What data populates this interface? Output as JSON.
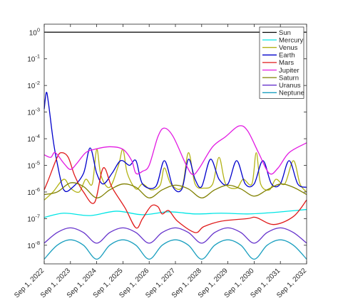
{
  "chart_data": {
    "type": "line",
    "title": "",
    "xlabel": "",
    "ylabel": "",
    "x_axis": {
      "type": "date",
      "range": [
        "2022-09-01",
        "2032-09-01"
      ],
      "tick_labels": [
        "Sep 1, 2022",
        "Sep 1, 2023",
        "Sep 1, 2024",
        "Sep 1, 2025",
        "Sep 1, 2026",
        "Sep 1, 2027",
        "Sep 1, 2028",
        "Sep 1, 2029",
        "Sep 1, 2030",
        "Sep 1, 2031",
        "Sep 1, 2032"
      ]
    },
    "y_axis": {
      "scale": "log",
      "range": [
        2e-09,
        2
      ],
      "ticks": [
        {
          "value": 1e-08,
          "base": "10",
          "exp": "-8"
        },
        {
          "value": 1e-07,
          "base": "10",
          "exp": "-7"
        },
        {
          "value": 1e-06,
          "base": "10",
          "exp": "-6"
        },
        {
          "value": 1e-05,
          "base": "10",
          "exp": "-5"
        },
        {
          "value": 0.0001,
          "base": "10",
          "exp": "-4"
        },
        {
          "value": 0.001,
          "base": "10",
          "exp": "-3"
        },
        {
          "value": 0.01,
          "base": "10",
          "exp": "-2"
        },
        {
          "value": 0.1,
          "base": "10",
          "exp": "-1"
        },
        {
          "value": 1,
          "base": "10",
          "exp": "0"
        }
      ]
    },
    "grid": false,
    "legend": {
      "position": "top-right"
    },
    "series": [
      {
        "name": "Sun",
        "color": "#000000",
        "points": [
          [
            "2022-09-01",
            1.0
          ],
          [
            "2032-09-01",
            1.0
          ]
        ]
      },
      {
        "name": "Mercury",
        "color": "#00e5e5",
        "points": [
          [
            "2022-09-01",
            1.1e-07
          ],
          [
            "2023-06-01",
            1.6e-07
          ],
          [
            "2024-06-01",
            1.3e-07
          ],
          [
            "2025-06-01",
            1.9e-07
          ],
          [
            "2026-06-01",
            1.4e-07
          ],
          [
            "2027-06-01",
            1.8e-07
          ],
          [
            "2028-06-01",
            1.5e-07
          ],
          [
            "2029-06-01",
            1.6e-07
          ],
          [
            "2030-06-01",
            1.5e-07
          ],
          [
            "2031-06-01",
            1.7e-07
          ],
          [
            "2032-09-01",
            2.2e-07
          ]
        ]
      },
      {
        "name": "Venus",
        "color": "#b3b317",
        "points": [
          [
            "2022-09-01",
            5e-07
          ],
          [
            "2023-01-01",
            1e-06
          ],
          [
            "2023-06-01",
            3e-06
          ],
          [
            "2023-09-01",
            1.4e-06
          ],
          [
            "2024-01-01",
            1e-06
          ],
          [
            "2024-04-01",
            3e-06
          ],
          [
            "2024-07-01",
            2e-06
          ],
          [
            "2024-09-01",
            4e-05
          ],
          [
            "2024-11-01",
            4e-06
          ],
          [
            "2025-03-01",
            1.5e-06
          ],
          [
            "2025-07-01",
            1e-05
          ],
          [
            "2025-09-01",
            4e-05
          ],
          [
            "2025-11-01",
            5e-06
          ],
          [
            "2026-03-01",
            1.3e-06
          ],
          [
            "2026-06-01",
            2e-06
          ],
          [
            "2026-10-01",
            1.2e-06
          ],
          [
            "2027-02-01",
            1.8e-06
          ],
          [
            "2027-04-01",
            8e-06
          ],
          [
            "2027-07-01",
            2e-06
          ],
          [
            "2027-12-01",
            1.5e-06
          ],
          [
            "2028-03-01",
            3e-05
          ],
          [
            "2028-06-01",
            2e-06
          ],
          [
            "2028-10-01",
            1.4e-06
          ],
          [
            "2029-02-01",
            2e-06
          ],
          [
            "2029-05-01",
            2e-05
          ],
          [
            "2029-08-01",
            2e-06
          ],
          [
            "2030-01-01",
            1.4e-06
          ],
          [
            "2030-04-01",
            3e-06
          ],
          [
            "2030-08-01",
            2e-06
          ],
          [
            "2030-10-01",
            3e-05
          ],
          [
            "2030-12-01",
            2e-06
          ],
          [
            "2031-04-01",
            1.2e-06
          ],
          [
            "2031-07-01",
            3e-06
          ],
          [
            "2031-11-01",
            2e-06
          ],
          [
            "2032-03-01",
            1.5e-05
          ],
          [
            "2032-06-01",
            2e-06
          ],
          [
            "2032-09-01",
            1e-06
          ]
        ]
      },
      {
        "name": "Earth",
        "color": "#0000cc",
        "points": [
          [
            "2022-09-01",
            0.0013
          ],
          [
            "2022-10-01",
            0.0055
          ],
          [
            "2022-11-01",
            0.002
          ],
          [
            "2023-01-01",
            0.0001
          ],
          [
            "2023-03-01",
            1.2e-05
          ],
          [
            "2023-06-01",
            1.2e-06
          ],
          [
            "2023-10-01",
            1.5e-06
          ],
          [
            "2024-03-01",
            5e-06
          ],
          [
            "2024-06-01",
            4.5e-05
          ],
          [
            "2024-09-01",
            5e-06
          ],
          [
            "2024-12-01",
            2e-06
          ],
          [
            "2025-04-01",
            5e-06
          ],
          [
            "2025-08-01",
            1.5e-05
          ],
          [
            "2025-12-01",
            1e-05
          ],
          [
            "2026-03-01",
            1.5e-05
          ],
          [
            "2026-06-01",
            2e-06
          ],
          [
            "2026-12-01",
            1.6e-06
          ],
          [
            "2027-04-01",
            1.5e-05
          ],
          [
            "2027-08-01",
            1.5e-06
          ],
          [
            "2027-12-01",
            1.3e-06
          ],
          [
            "2028-03-01",
            1.7e-05
          ],
          [
            "2028-06-01",
            3e-06
          ],
          [
            "2028-09-01",
            1.6e-06
          ],
          [
            "2029-01-01",
            1.7e-05
          ],
          [
            "2029-05-01",
            3e-06
          ],
          [
            "2029-09-01",
            2e-06
          ],
          [
            "2030-01-01",
            1.5e-05
          ],
          [
            "2030-05-01",
            2e-06
          ],
          [
            "2030-09-01",
            2e-06
          ],
          [
            "2031-01-01",
            1.5e-05
          ],
          [
            "2031-05-01",
            2e-06
          ],
          [
            "2031-09-01",
            2e-06
          ],
          [
            "2032-01-01",
            1.5e-05
          ],
          [
            "2032-05-01",
            2e-06
          ],
          [
            "2032-09-01",
            1.5e-06
          ]
        ]
      },
      {
        "name": "Mars",
        "color": "#e01a1a",
        "points": [
          [
            "2022-09-01",
            1.2e-06
          ],
          [
            "2022-11-01",
            3e-06
          ],
          [
            "2023-03-01",
            2e-05
          ],
          [
            "2023-05-01",
            3e-05
          ],
          [
            "2023-08-01",
            2e-05
          ],
          [
            "2023-11-01",
            4e-06
          ],
          [
            "2024-03-01",
            1e-06
          ],
          [
            "2024-08-01",
            4e-07
          ],
          [
            "2024-12-01",
            8e-06
          ],
          [
            "2025-04-01",
            1.5e-06
          ],
          [
            "2025-10-01",
            2.5e-07
          ],
          [
            "2026-03-01",
            4.5e-08
          ],
          [
            "2026-06-01",
            1e-07
          ],
          [
            "2026-10-01",
            3e-07
          ],
          [
            "2027-01-01",
            2.8e-07
          ],
          [
            "2027-03-01",
            1.5e-07
          ],
          [
            "2027-06-01",
            2e-07
          ],
          [
            "2027-10-01",
            8e-08
          ],
          [
            "2028-06-01",
            3e-08
          ],
          [
            "2028-10-01",
            5e-08
          ],
          [
            "2029-06-01",
            8e-08
          ],
          [
            "2030-06-01",
            1e-07
          ],
          [
            "2030-10-01",
            1.1e-07
          ],
          [
            "2031-06-01",
            6e-08
          ],
          [
            "2032-03-01",
            1.2e-07
          ],
          [
            "2032-09-01",
            5e-07
          ]
        ]
      },
      {
        "name": "Jupiter",
        "color": "#e21ae2",
        "points": [
          [
            "2022-09-01",
            2.5e-05
          ],
          [
            "2022-12-01",
            2e-05
          ],
          [
            "2023-02-01",
            3e-05
          ],
          [
            "2023-06-01",
            1.2e-05
          ],
          [
            "2023-09-01",
            7e-06
          ],
          [
            "2023-12-01",
            1.2e-05
          ],
          [
            "2024-04-01",
            3e-05
          ],
          [
            "2024-08-01",
            4e-05
          ],
          [
            "2025-03-01",
            5e-05
          ],
          [
            "2025-09-01",
            4e-05
          ],
          [
            "2026-01-01",
            1.5e-05
          ],
          [
            "2026-03-01",
            5e-06
          ],
          [
            "2026-06-01",
            6e-06
          ],
          [
            "2026-09-01",
            1e-05
          ],
          [
            "2027-01-01",
            0.00012
          ],
          [
            "2027-04-01",
            0.00025
          ],
          [
            "2027-08-01",
            0.00012
          ],
          [
            "2028-02-01",
            1e-05
          ],
          [
            "2028-05-01",
            4.5e-06
          ],
          [
            "2028-08-01",
            8e-06
          ],
          [
            "2029-02-01",
            5e-05
          ],
          [
            "2029-08-01",
            0.00012
          ],
          [
            "2030-02-01",
            0.0003
          ],
          [
            "2030-06-01",
            0.0002
          ],
          [
            "2030-11-01",
            3e-05
          ],
          [
            "2031-04-01",
            5e-06
          ],
          [
            "2031-08-01",
            8e-06
          ],
          [
            "2032-01-01",
            3e-05
          ],
          [
            "2032-09-01",
            7e-05
          ]
        ]
      },
      {
        "name": "Saturn",
        "color": "#808000",
        "points": [
          [
            "2022-09-01",
            8e-07
          ],
          [
            "2023-03-01",
            1e-06
          ],
          [
            "2023-09-01",
            2.2e-06
          ],
          [
            "2024-03-01",
            1.6e-06
          ],
          [
            "2024-09-01",
            6e-07
          ],
          [
            "2025-03-01",
            1.2e-06
          ],
          [
            "2025-09-01",
            2e-06
          ],
          [
            "2026-03-01",
            1.5e-06
          ],
          [
            "2026-09-01",
            6e-07
          ],
          [
            "2027-03-01",
            1.2e-06
          ],
          [
            "2027-09-01",
            1.8e-06
          ],
          [
            "2028-03-01",
            1.3e-06
          ],
          [
            "2028-09-01",
            6e-07
          ],
          [
            "2029-03-01",
            1.2e-06
          ],
          [
            "2029-09-01",
            1.8e-06
          ],
          [
            "2030-03-01",
            1.3e-06
          ],
          [
            "2030-09-01",
            7e-07
          ],
          [
            "2031-03-01",
            1.2e-06
          ],
          [
            "2031-09-01",
            2e-06
          ],
          [
            "2032-03-01",
            1.5e-06
          ],
          [
            "2032-09-01",
            8e-07
          ]
        ]
      },
      {
        "name": "Uranus",
        "color": "#6633cc",
        "points": [
          [
            "2022-09-01",
            1.2e-08
          ],
          [
            "2023-03-01",
            3e-08
          ],
          [
            "2023-09-01",
            4.5e-08
          ],
          [
            "2024-03-01",
            3e-08
          ],
          [
            "2024-09-01",
            1.2e-08
          ],
          [
            "2025-03-01",
            3e-08
          ],
          [
            "2025-09-01",
            4.5e-08
          ],
          [
            "2026-03-01",
            3e-08
          ],
          [
            "2026-09-01",
            1.2e-08
          ],
          [
            "2027-03-01",
            3e-08
          ],
          [
            "2027-09-01",
            4.5e-08
          ],
          [
            "2028-03-01",
            3e-08
          ],
          [
            "2028-09-01",
            1.2e-08
          ],
          [
            "2029-03-01",
            3e-08
          ],
          [
            "2029-09-01",
            4.5e-08
          ],
          [
            "2030-03-01",
            3e-08
          ],
          [
            "2030-09-01",
            1.2e-08
          ],
          [
            "2031-03-01",
            3e-08
          ],
          [
            "2031-09-01",
            4.5e-08
          ],
          [
            "2032-03-01",
            3e-08
          ],
          [
            "2032-09-01",
            1.2e-08
          ]
        ]
      },
      {
        "name": "Neptune",
        "color": "#1a9fbf",
        "points": [
          [
            "2022-09-01",
            3e-09
          ],
          [
            "2023-03-01",
            1e-08
          ],
          [
            "2023-09-01",
            1.6e-08
          ],
          [
            "2024-03-01",
            1e-08
          ],
          [
            "2024-09-01",
            3e-09
          ],
          [
            "2025-03-01",
            1e-08
          ],
          [
            "2025-09-01",
            1.6e-08
          ],
          [
            "2026-03-01",
            1e-08
          ],
          [
            "2026-09-01",
            3e-09
          ],
          [
            "2027-03-01",
            1e-08
          ],
          [
            "2027-09-01",
            1.6e-08
          ],
          [
            "2028-03-01",
            1e-08
          ],
          [
            "2028-09-01",
            3e-09
          ],
          [
            "2029-03-01",
            1e-08
          ],
          [
            "2029-09-01",
            1.6e-08
          ],
          [
            "2030-03-01",
            1e-08
          ],
          [
            "2030-09-01",
            3e-09
          ],
          [
            "2031-03-01",
            1e-08
          ],
          [
            "2031-09-01",
            1.6e-08
          ],
          [
            "2032-03-01",
            1e-08
          ],
          [
            "2032-09-01",
            3e-09
          ]
        ]
      }
    ]
  }
}
